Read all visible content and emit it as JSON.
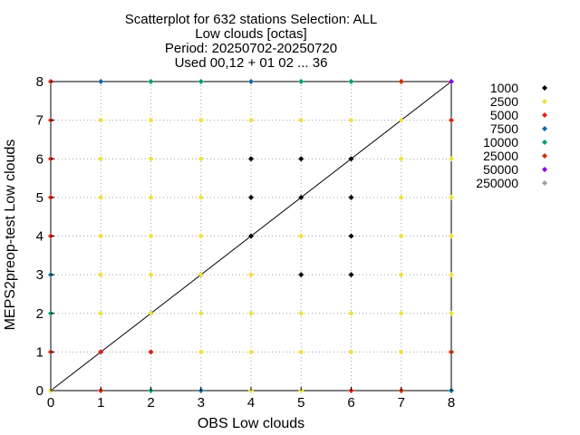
{
  "chart_data": {
    "type": "scatter",
    "title_lines": [
      "Scatterplot for  632 stations Selection: ALL",
      "Low clouds [octas]",
      "Period: 20250702-20250720",
      "Used 00,12 + 01 02 ... 36"
    ],
    "xlabel": "OBS Low clouds",
    "ylabel": "MEPS2preop-test Low clouds",
    "xlim": [
      0,
      8
    ],
    "ylim": [
      0,
      8
    ],
    "xticks": [
      0,
      1,
      2,
      3,
      4,
      5,
      6,
      7,
      8
    ],
    "yticks": [
      0,
      1,
      2,
      3,
      4,
      5,
      6,
      7,
      8
    ],
    "grid": true,
    "diagonal_line": true,
    "legend_position": "right",
    "series": [
      {
        "name": "1000",
        "color": "#000000",
        "points": [
          [
            1,
            1
          ],
          [
            2,
            2
          ],
          [
            3,
            3
          ],
          [
            4,
            4
          ],
          [
            4,
            5
          ],
          [
            4,
            6
          ],
          [
            5,
            3
          ],
          [
            5,
            5
          ],
          [
            5,
            6
          ],
          [
            6,
            3
          ],
          [
            6,
            4
          ],
          [
            6,
            5
          ],
          [
            6,
            6
          ]
        ]
      },
      {
        "name": "2500",
        "color": "#f0e040",
        "points": [
          [
            0,
            8
          ],
          [
            0,
            7
          ],
          [
            0,
            6
          ],
          [
            0,
            5
          ],
          [
            0,
            4
          ],
          [
            0,
            3
          ],
          [
            0,
            2
          ],
          [
            0,
            1
          ],
          [
            0,
            0
          ],
          [
            1,
            8
          ],
          [
            1,
            7
          ],
          [
            1,
            6
          ],
          [
            1,
            5
          ],
          [
            1,
            4
          ],
          [
            1,
            3
          ],
          [
            1,
            2
          ],
          [
            1,
            1
          ],
          [
            1,
            0
          ],
          [
            2,
            8
          ],
          [
            2,
            7
          ],
          [
            2,
            6
          ],
          [
            2,
            5
          ],
          [
            2,
            4
          ],
          [
            2,
            3
          ],
          [
            2,
            2
          ],
          [
            2,
            1
          ],
          [
            2,
            0
          ],
          [
            3,
            8
          ],
          [
            3,
            7
          ],
          [
            3,
            6
          ],
          [
            3,
            5
          ],
          [
            3,
            4
          ],
          [
            3,
            3
          ],
          [
            3,
            2
          ],
          [
            3,
            1
          ],
          [
            3,
            0
          ],
          [
            4,
            8
          ],
          [
            4,
            7
          ],
          [
            4,
            3
          ],
          [
            4,
            2
          ],
          [
            4,
            1
          ],
          [
            4,
            0
          ],
          [
            5,
            8
          ],
          [
            5,
            7
          ],
          [
            5,
            4
          ],
          [
            5,
            2
          ],
          [
            5,
            1
          ],
          [
            5,
            0
          ],
          [
            6,
            8
          ],
          [
            6,
            7
          ],
          [
            6,
            2
          ],
          [
            6,
            1
          ],
          [
            6,
            0
          ],
          [
            7,
            8
          ],
          [
            7,
            7
          ],
          [
            7,
            6
          ],
          [
            7,
            5
          ],
          [
            7,
            4
          ],
          [
            7,
            3
          ],
          [
            7,
            2
          ],
          [
            7,
            1
          ],
          [
            7,
            0
          ],
          [
            8,
            8
          ],
          [
            8,
            7
          ],
          [
            8,
            6
          ],
          [
            8,
            5
          ],
          [
            8,
            4
          ],
          [
            8,
            3
          ],
          [
            8,
            2
          ],
          [
            8,
            1
          ],
          [
            8,
            0
          ]
        ]
      },
      {
        "name": "5000",
        "color": "#e0201a",
        "points": [
          [
            0,
            8
          ],
          [
            0,
            7
          ],
          [
            0,
            6
          ],
          [
            0,
            5
          ],
          [
            0,
            4
          ],
          [
            0,
            1
          ],
          [
            1,
            0
          ],
          [
            1,
            1
          ],
          [
            2,
            1
          ],
          [
            6,
            0
          ],
          [
            7,
            8
          ],
          [
            7,
            0
          ],
          [
            8,
            7
          ],
          [
            8,
            1
          ]
        ]
      },
      {
        "name": "7500",
        "color": "#0d6aa8",
        "points": [
          [
            0,
            3
          ],
          [
            1,
            8
          ],
          [
            3,
            0
          ],
          [
            4,
            8
          ],
          [
            8,
            0
          ]
        ]
      },
      {
        "name": "10000",
        "color": "#00a070",
        "points": [
          [
            0,
            2
          ],
          [
            2,
            8
          ],
          [
            2,
            0
          ],
          [
            3,
            8
          ],
          [
            5,
            8
          ],
          [
            6,
            8
          ]
        ]
      },
      {
        "name": "25000",
        "color": "#cc3010",
        "points": [
          [
            7,
            8
          ],
          [
            7,
            0
          ],
          [
            8,
            1
          ]
        ]
      },
      {
        "name": "50000",
        "color": "#8a00d4",
        "points": [
          [
            8,
            8
          ]
        ]
      },
      {
        "name": "250000",
        "color": "#a0a0a0",
        "points": []
      }
    ]
  }
}
